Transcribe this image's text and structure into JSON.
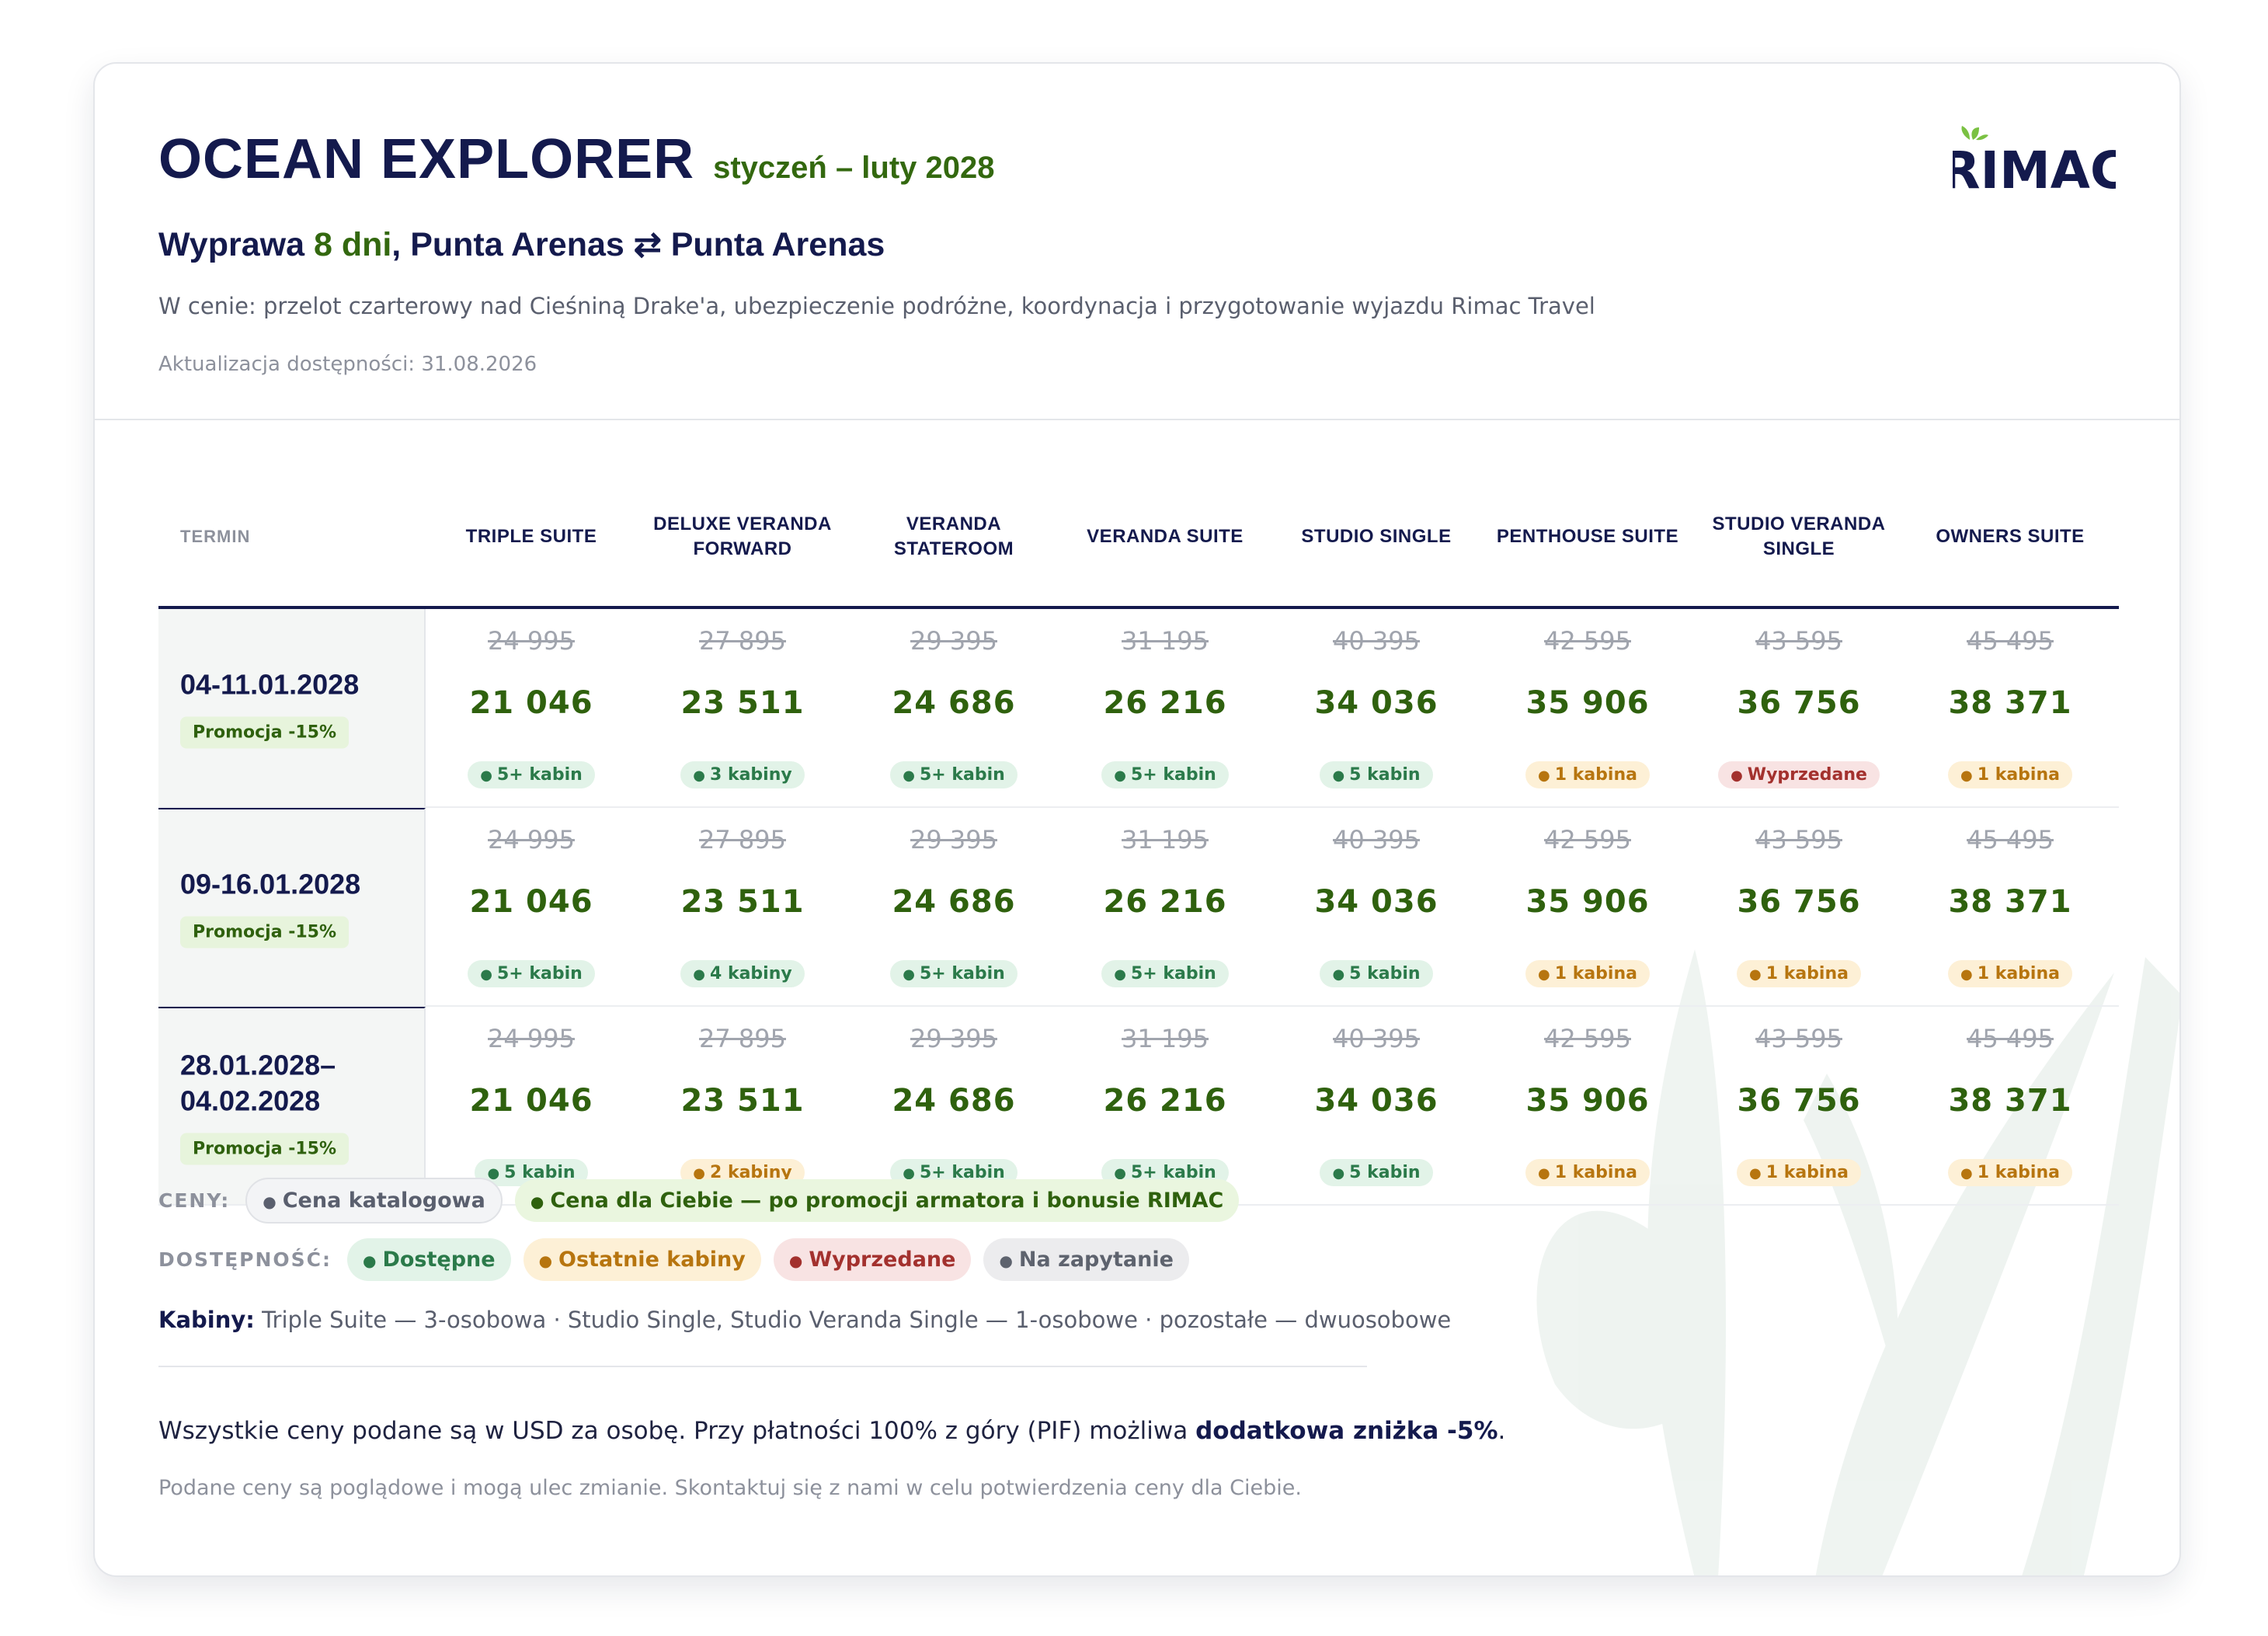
{
  "header": {
    "title": "OCEAN EXPLORER",
    "subtitle": "styczeń – luty 2028",
    "route_prefix": "Wyprawa ",
    "route_highlight": "8 dni",
    "route_suffix": ", Punta Arenas ⇄ Punta Arenas",
    "includes": "W cenie: przelot czarterowy nad Cieśniną Drake'a, ubezpieczenie podróżne, koordynacja i przygotowanie wyjazdu Rimac Travel",
    "updated": "Aktualizacja dostępności: 31.08.2026",
    "logo_text": "RIMAC"
  },
  "table": {
    "term_header": "TERMIN",
    "columns": [
      [
        "TRIPLE SUITE"
      ],
      [
        "DELUXE VERANDA",
        "FORWARD"
      ],
      [
        "VERANDA",
        "STATEROOM"
      ],
      [
        "VERANDA SUITE"
      ],
      [
        "STUDIO SINGLE"
      ],
      [
        "PENTHOUSE SUITE"
      ],
      [
        "STUDIO VERANDA",
        "SINGLE"
      ],
      [
        "OWNERS SUITE"
      ]
    ],
    "rows": [
      {
        "term": [
          "04-11.01.2028"
        ],
        "promo": "Promocja -15%",
        "old_prices": [
          "24 995",
          "27 895",
          "29 395",
          "31 195",
          "40 395",
          "42 595",
          "43 595",
          "45 495"
        ],
        "prices": [
          "21 046",
          "23 511",
          "24 686",
          "26 216",
          "34 036",
          "35 906",
          "36 756",
          "38 371"
        ],
        "availability": [
          {
            "label": "5+ kabin",
            "status": "ok"
          },
          {
            "label": "3 kabiny",
            "status": "ok"
          },
          {
            "label": "5+ kabin",
            "status": "ok"
          },
          {
            "label": "5+ kabin",
            "status": "ok"
          },
          {
            "label": "5 kabin",
            "status": "ok"
          },
          {
            "label": "1 kabina",
            "status": "last"
          },
          {
            "label": "Wyprzedane",
            "status": "sold"
          },
          {
            "label": "1 kabina",
            "status": "last"
          }
        ]
      },
      {
        "term": [
          "09-16.01.2028"
        ],
        "promo": "Promocja -15%",
        "old_prices": [
          "24 995",
          "27 895",
          "29 395",
          "31 195",
          "40 395",
          "42 595",
          "43 595",
          "45 495"
        ],
        "prices": [
          "21 046",
          "23 511",
          "24 686",
          "26 216",
          "34 036",
          "35 906",
          "36 756",
          "38 371"
        ],
        "availability": [
          {
            "label": "5+ kabin",
            "status": "ok"
          },
          {
            "label": "4 kabiny",
            "status": "ok"
          },
          {
            "label": "5+ kabin",
            "status": "ok"
          },
          {
            "label": "5+ kabin",
            "status": "ok"
          },
          {
            "label": "5 kabin",
            "status": "ok"
          },
          {
            "label": "1 kabina",
            "status": "last"
          },
          {
            "label": "1 kabina",
            "status": "last"
          },
          {
            "label": "1 kabina",
            "status": "last"
          }
        ]
      },
      {
        "term": [
          "28.01.2028–",
          "04.02.2028"
        ],
        "promo": "Promocja -15%",
        "old_prices": [
          "24 995",
          "27 895",
          "29 395",
          "31 195",
          "40 395",
          "42 595",
          "43 595",
          "45 495"
        ],
        "prices": [
          "21 046",
          "23 511",
          "24 686",
          "26 216",
          "34 036",
          "35 906",
          "36 756",
          "38 371"
        ],
        "availability": [
          {
            "label": "5 kabin",
            "status": "ok"
          },
          {
            "label": "2 kabiny",
            "status": "last"
          },
          {
            "label": "5+ kabin",
            "status": "ok"
          },
          {
            "label": "5+ kabin",
            "status": "ok"
          },
          {
            "label": "5 kabin",
            "status": "ok"
          },
          {
            "label": "1 kabina",
            "status": "last"
          },
          {
            "label": "1 kabina",
            "status": "last"
          },
          {
            "label": "1 kabina",
            "status": "last"
          }
        ]
      }
    ]
  },
  "legend": {
    "prices_label": "CENY:",
    "catalog": "Cena katalogowa",
    "for_you": "Cena dla Ciebie — po promocji armatora i bonusie RIMAC",
    "availability_label": "DOSTĘPNOŚĆ:",
    "available": "Dostępne",
    "last": "Ostatnie kabiny",
    "sold": "Wyprzedane",
    "on_request": "Na zapytanie"
  },
  "cabins": {
    "label": "Kabiny:",
    "text": " Triple Suite — 3-osobowa · Studio Single, Studio Veranda Single — 1-osobowe · pozostałe — dwuosobowe"
  },
  "footer": {
    "note_prefix": "Wszystkie ceny podane są w USD za osobę. Przy płatności 100% z góry (PIF) możliwa ",
    "note_bold": "dodatkowa zniżka -5%",
    "note_suffix": ".",
    "disclaimer": "Podane ceny są poglądowe i mogą ulec zmianie. Skontaktuj się z nami w celu potwierdzenia ceny dla Ciebie."
  },
  "colors": {
    "navy": "#141a4d",
    "green": "#2f610e",
    "available": "#2b7a4a",
    "last_cabins": "#b7750f",
    "sold_out": "#a3312e",
    "on_request": "#5e636e"
  }
}
